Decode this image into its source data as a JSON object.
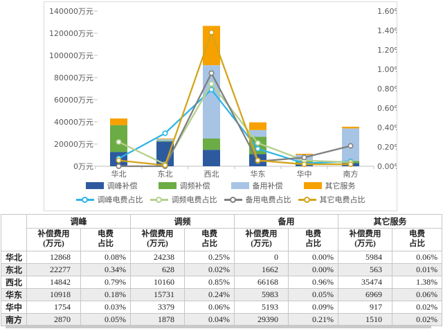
{
  "chart_data": {
    "type": "bar",
    "subtype": "stacked-column-with-percent-lines",
    "categories": [
      "华北",
      "东北",
      "西北",
      "华东",
      "华中",
      "南方"
    ],
    "bars": [
      {
        "name": "调峰补偿",
        "color": "#2D5A9E",
        "axis": "left",
        "values": [
          12868,
          22277,
          14842,
          10918,
          1754,
          2870
        ]
      },
      {
        "name": "调频补偿",
        "color": "#6BAC45",
        "axis": "left",
        "values": [
          24238,
          628,
          10160,
          15731,
          3379,
          1878
        ]
      },
      {
        "name": "备用补偿",
        "color": "#A7C4E5",
        "axis": "left",
        "values": [
          0,
          1662,
          66168,
          5983,
          5193,
          29390
        ]
      },
      {
        "name": "其它服务",
        "color": "#F7A100",
        "axis": "left",
        "values": [
          5984,
          563,
          35474,
          6969,
          917,
          1510
        ]
      }
    ],
    "lines": [
      {
        "name": "调峰电费占比",
        "color": "#2FB4E9",
        "axis": "right",
        "values": [
          0.08,
          0.34,
          0.79,
          0.18,
          0.03,
          0.05
        ]
      },
      {
        "name": "调频电费占比",
        "color": "#B5D08E",
        "axis": "right",
        "values": [
          0.25,
          0.02,
          0.85,
          0.24,
          0.06,
          0.04
        ]
      },
      {
        "name": "备用电费占比",
        "color": "#7F7F7F",
        "axis": "right",
        "values": [
          0.0,
          0.0,
          0.96,
          0.05,
          0.09,
          0.21
        ]
      },
      {
        "name": "其它电费占比",
        "color": "#D3A41B",
        "axis": "right",
        "values": [
          0.06,
          0.01,
          1.38,
          0.06,
          0.02,
          0.02
        ]
      }
    ],
    "left_axis": {
      "min": 0,
      "max": 140000,
      "step": 20000,
      "unit": "万元",
      "tick_labels": [
        "140000万元",
        "120000万元",
        "100000万元",
        "80000万元",
        "60000万元",
        "40000万元",
        "20000万元",
        "0万元"
      ]
    },
    "right_axis": {
      "min": 0,
      "max": 1.6,
      "step": 0.2,
      "unit": "%",
      "tick_labels": [
        "1.60%",
        "1.40%",
        "1.20%",
        "1.00%",
        "0.80%",
        "0.60%",
        "0.40%",
        "0.20%",
        "0.00%"
      ]
    },
    "legend_position": "bottom",
    "grid": false,
    "plot_background": "#ffffff"
  },
  "table": {
    "corner_label": "",
    "groups": [
      "调峰",
      "调频",
      "备用",
      "其它服务"
    ],
    "fee_header": "补偿费用\n(万元)",
    "ratio_header": "电费\n占比",
    "rows": [
      {
        "region": "华北",
        "values": [
          "12868",
          "0.08%",
          "24238",
          "0.25%",
          "0",
          "0.00%",
          "5984",
          "0.06%"
        ]
      },
      {
        "region": "东北",
        "values": [
          "22277",
          "0.34%",
          "628",
          "0.02%",
          "1662",
          "0.00%",
          "563",
          "0.01%"
        ]
      },
      {
        "region": "西北",
        "values": [
          "14842",
          "0.79%",
          "10160",
          "0.85%",
          "66168",
          "0.96%",
          "35474",
          "1.38%"
        ]
      },
      {
        "region": "华东",
        "values": [
          "10918",
          "0.18%",
          "15731",
          "0.24%",
          "5983",
          "0.05%",
          "6969",
          "0.06%"
        ]
      },
      {
        "region": "华中",
        "values": [
          "1754",
          "0.03%",
          "3379",
          "0.06%",
          "5193",
          "0.09%",
          "917",
          "0.02%"
        ]
      },
      {
        "region": "南方",
        "values": [
          "2870",
          "0.05%",
          "1878",
          "0.04%",
          "29390",
          "0.21%",
          "1510",
          "0.02%"
        ]
      }
    ]
  },
  "colors": {
    "panel_border": "#d9d9d9",
    "axis_text": "#595959",
    "axis_line": "#bfbfbf",
    "table_border": "#c6c6c6",
    "row_alt_bg": "#ececec",
    "marker_fill": "#ffffff"
  }
}
